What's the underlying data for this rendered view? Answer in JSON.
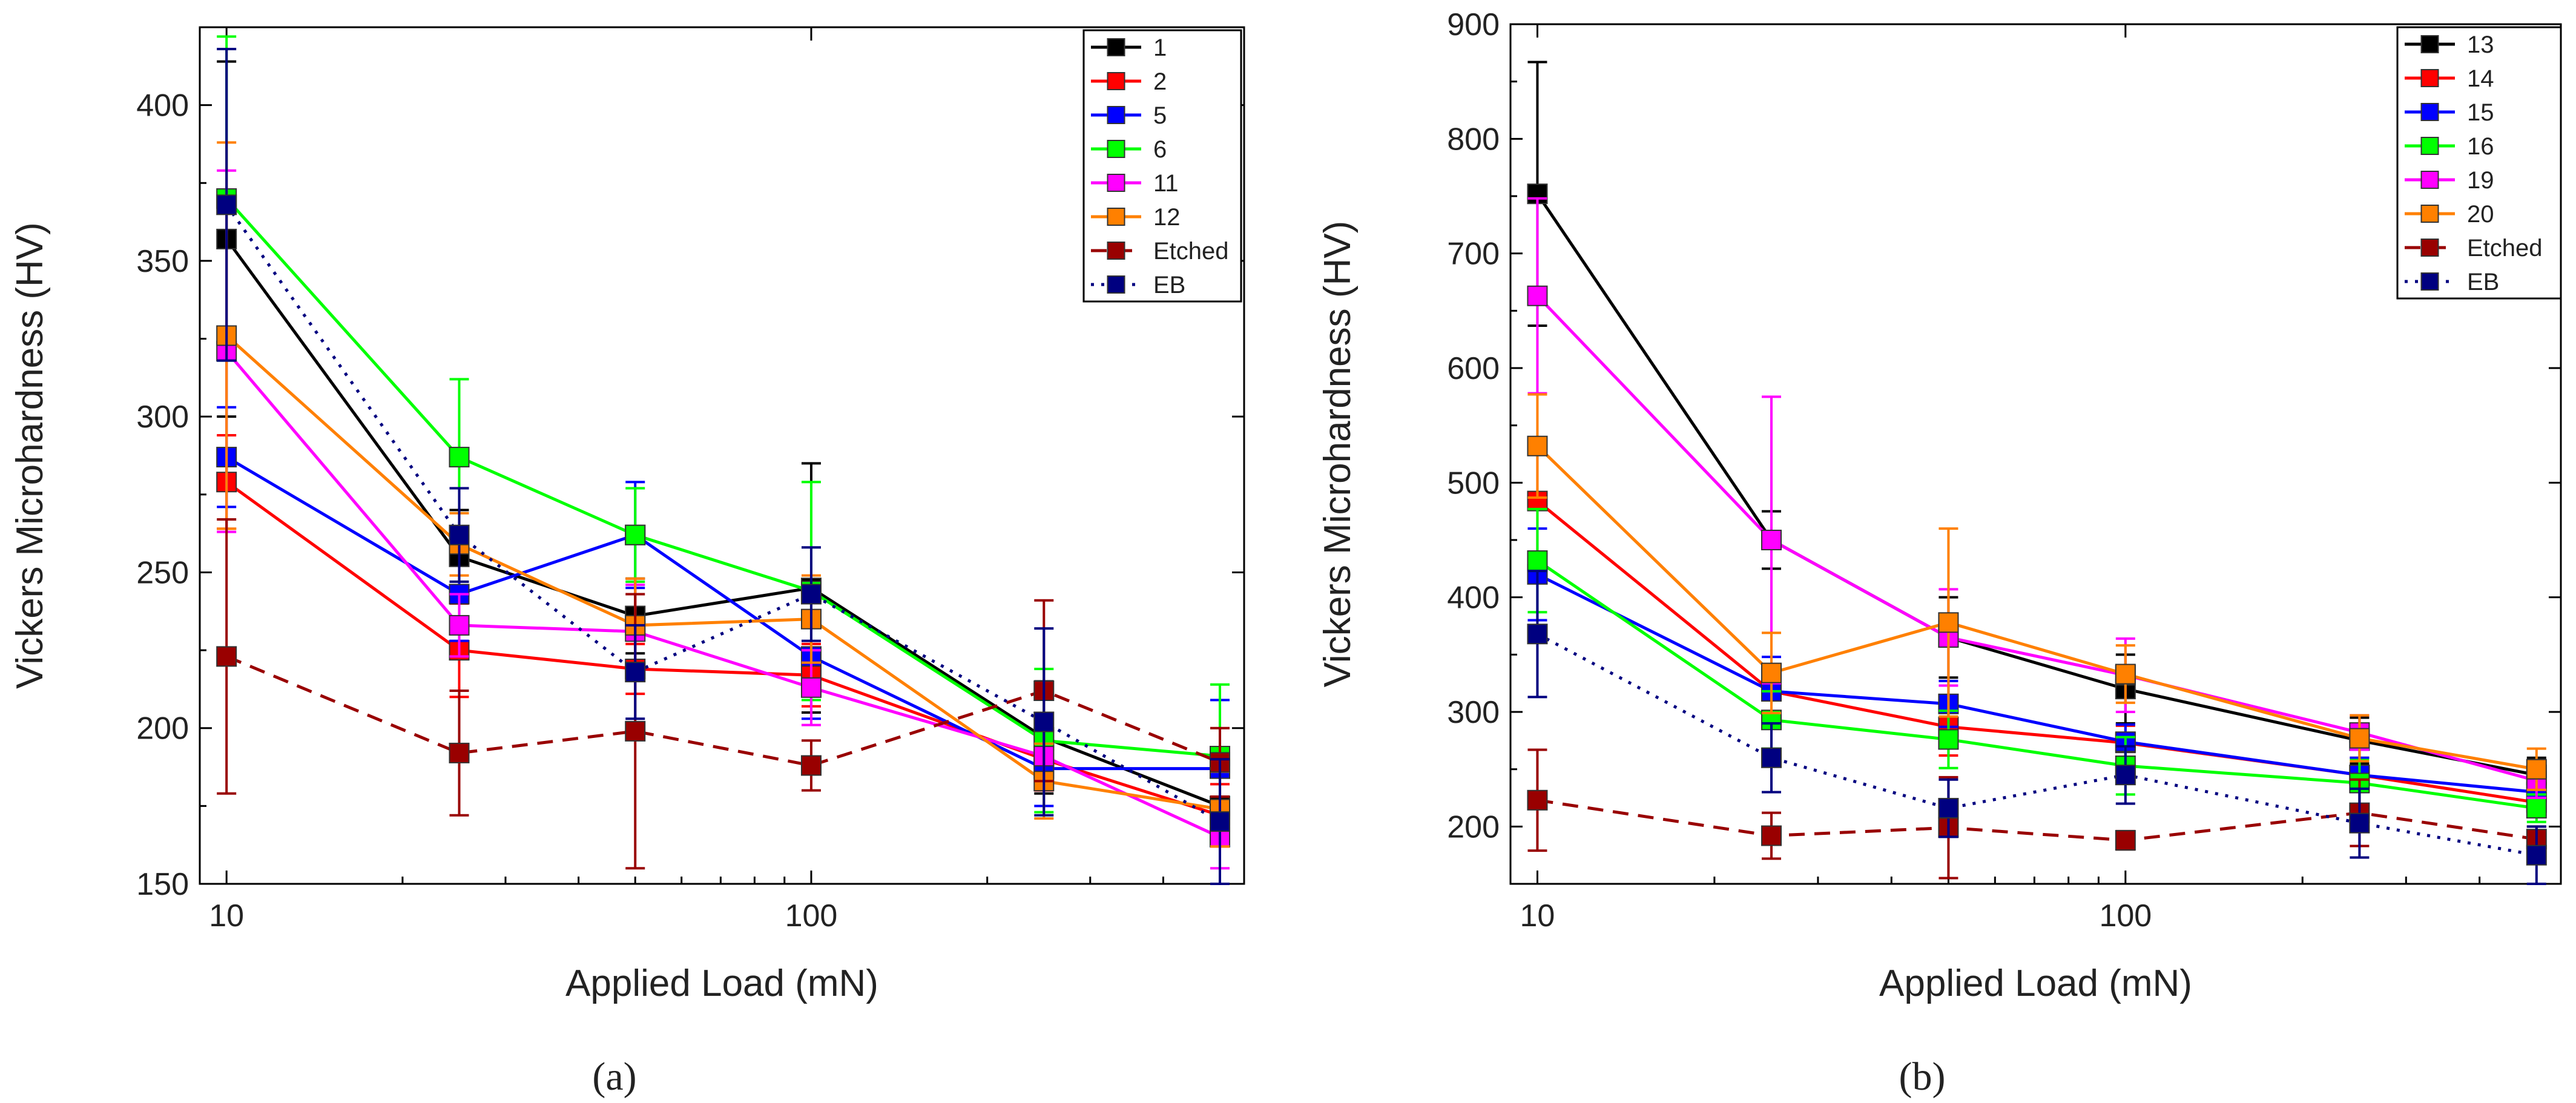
{
  "chart_data": [
    {
      "type": "line",
      "panel_label": "(a)",
      "panel_letter": "a",
      "xlabel": "Applied Load (mN)",
      "ylabel": "Vickers Microhardness (HV)",
      "xscale": "log",
      "xlim": [
        9,
        550
      ],
      "ylim": [
        150,
        425
      ],
      "xticks": [
        10,
        100
      ],
      "xtick_labels": [
        "10",
        "100"
      ],
      "yticks": [
        150,
        200,
        250,
        300,
        350,
        400
      ],
      "ytick_labels": [
        "150",
        "200",
        "250",
        "300",
        "350",
        "400"
      ],
      "x": [
        10,
        25,
        50,
        100,
        250,
        500
      ],
      "legend_position": "top-right",
      "series": [
        {
          "name": "1",
          "color": "#000000",
          "style": "solid",
          "values": [
            357,
            255,
            236,
            245,
            197,
            175
          ],
          "errors": [
            57,
            15,
            12,
            40,
            18,
            12
          ]
        },
        {
          "name": "2",
          "color": "#ff0000",
          "style": "solid",
          "values": [
            279,
            225,
            219,
            217,
            190,
            172
          ],
          "errors": [
            15,
            15,
            8,
            10,
            10,
            10
          ]
        },
        {
          "name": "5",
          "color": "#0000ff",
          "style": "solid",
          "values": [
            287,
            243,
            262,
            223,
            187,
            187
          ],
          "errors": [
            16,
            15,
            17,
            20,
            12,
            22
          ]
        },
        {
          "name": "6",
          "color": "#00ff00",
          "style": "solid",
          "values": [
            370,
            287,
            262,
            244,
            196,
            191
          ],
          "errors": [
            52,
            25,
            15,
            35,
            23,
            23
          ]
        },
        {
          "name": "11",
          "color": "#ff00ff",
          "style": "solid",
          "values": [
            321,
            233,
            231,
            213,
            191,
            165
          ],
          "errors": [
            58,
            10,
            15,
            12,
            10,
            10
          ]
        },
        {
          "name": "12",
          "color": "#ff8000",
          "style": "solid",
          "values": [
            326,
            259,
            233,
            235,
            183,
            174
          ],
          "errors": [
            62,
            10,
            15,
            14,
            12,
            12
          ]
        },
        {
          "name": "Etched",
          "color": "#990000",
          "style": "dashed",
          "values": [
            223,
            192,
            199,
            188,
            212,
            189
          ],
          "errors": [
            44,
            20,
            44,
            8,
            29,
            11
          ]
        },
        {
          "name": "EB",
          "color": "#000080",
          "style": "dotted",
          "values": [
            368,
            262,
            218,
            243,
            202,
            170
          ],
          "errors": [
            50,
            15,
            15,
            15,
            30,
            20
          ]
        }
      ]
    },
    {
      "type": "line",
      "panel_label": "(b)",
      "panel_letter": "b",
      "xlabel": "Applied Load (mN)",
      "ylabel": "Vickers Microhardness (HV)",
      "xscale": "log",
      "xlim": [
        9,
        550
      ],
      "ylim": [
        150,
        900
      ],
      "xticks": [
        10,
        100
      ],
      "xtick_labels": [
        "10",
        "100"
      ],
      "yticks": [
        200,
        300,
        400,
        500,
        600,
        700,
        800,
        900
      ],
      "ytick_labels": [
        "200",
        "300",
        "400",
        "500",
        "600",
        "700",
        "800",
        "900"
      ],
      "x": [
        10,
        25,
        50,
        100,
        250,
        500
      ],
      "legend_position": "top-right",
      "series": [
        {
          "name": "13",
          "color": "#000000",
          "style": "solid",
          "values": [
            752,
            450,
            365,
            320,
            275,
            245
          ],
          "errors": [
            115,
            25,
            35,
            30,
            20,
            15
          ]
        },
        {
          "name": "14",
          "color": "#ff0000",
          "style": "solid",
          "values": [
            484,
            318,
            287,
            273,
            245,
            221
          ],
          "errors": [
            50,
            20,
            25,
            15,
            15,
            12
          ]
        },
        {
          "name": "15",
          "color": "#0000ff",
          "style": "solid",
          "values": [
            420,
            318,
            307,
            274,
            245,
            230
          ],
          "errors": [
            40,
            30,
            20,
            15,
            15,
            12
          ]
        },
        {
          "name": "16",
          "color": "#00ff00",
          "style": "solid",
          "values": [
            432,
            293,
            276,
            253,
            238,
            216
          ],
          "errors": [
            45,
            25,
            25,
            25,
            20,
            12
          ]
        },
        {
          "name": "19",
          "color": "#ff00ff",
          "style": "solid",
          "values": [
            663,
            450,
            365,
            332,
            282,
            240
          ],
          "errors": [
            85,
            125,
            42,
            32,
            15,
            15
          ]
        },
        {
          "name": "20",
          "color": "#ff8000",
          "style": "solid",
          "values": [
            532,
            334,
            378,
            333,
            277,
            250
          ],
          "errors": [
            45,
            35,
            82,
            25,
            20,
            18
          ]
        },
        {
          "name": "Etched",
          "color": "#990000",
          "style": "dashed",
          "values": [
            223,
            192,
            199,
            188,
            212,
            189
          ],
          "errors": [
            44,
            20,
            44,
            8,
            29,
            11
          ]
        },
        {
          "name": "EB",
          "color": "#000080",
          "style": "dotted",
          "values": [
            368,
            260,
            216,
            245,
            203,
            175
          ],
          "errors": [
            55,
            30,
            25,
            25,
            30,
            25
          ]
        }
      ]
    }
  ]
}
